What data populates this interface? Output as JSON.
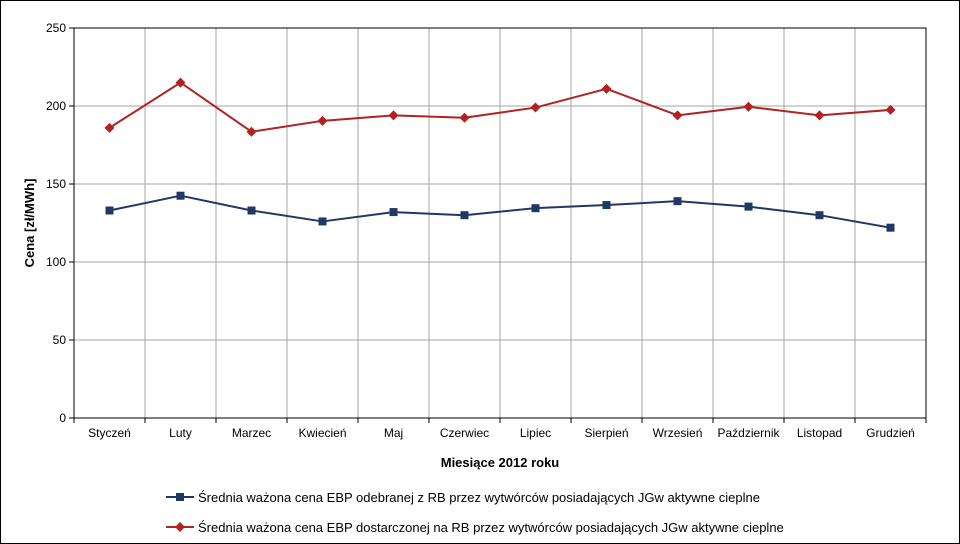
{
  "chart_data": {
    "type": "line",
    "xlabel": "Miesiące 2012 roku",
    "ylabel": "Cena [zł/MWh]",
    "ylim": [
      0,
      250
    ],
    "yticks": [
      "0",
      "50",
      "100",
      "150",
      "200",
      "250"
    ],
    "ytick_values": [
      0,
      50,
      100,
      150,
      200,
      250
    ],
    "grid": true,
    "legend_position": "bottom",
    "categories": [
      "Styczeń",
      "Luty",
      "Marzec",
      "Kwiecień",
      "Maj",
      "Czerwiec",
      "Lipiec",
      "Sierpień",
      "Wrzesień",
      "Październik",
      "Listopad",
      "Grudzień"
    ],
    "series": [
      {
        "name": "Średnia ważona cena EBP odebranej z RB przez wytwórców posiadających JGw aktywne cieplne",
        "color": "#1f3864",
        "marker": "square",
        "values": [
          133,
          142.5,
          133,
          126,
          132,
          130,
          134.5,
          136.5,
          139,
          135.5,
          130,
          122
        ]
      },
      {
        "name": "Średnia ważona cena EBP dostarczonej na RB przez wytwórców posiadających JGw aktywne cieplne",
        "color": "#b22222",
        "marker": "diamond",
        "values": [
          186,
          215,
          183.5,
          190.5,
          194,
          192.5,
          199,
          211,
          194,
          199.5,
          194,
          197.5
        ]
      }
    ]
  }
}
